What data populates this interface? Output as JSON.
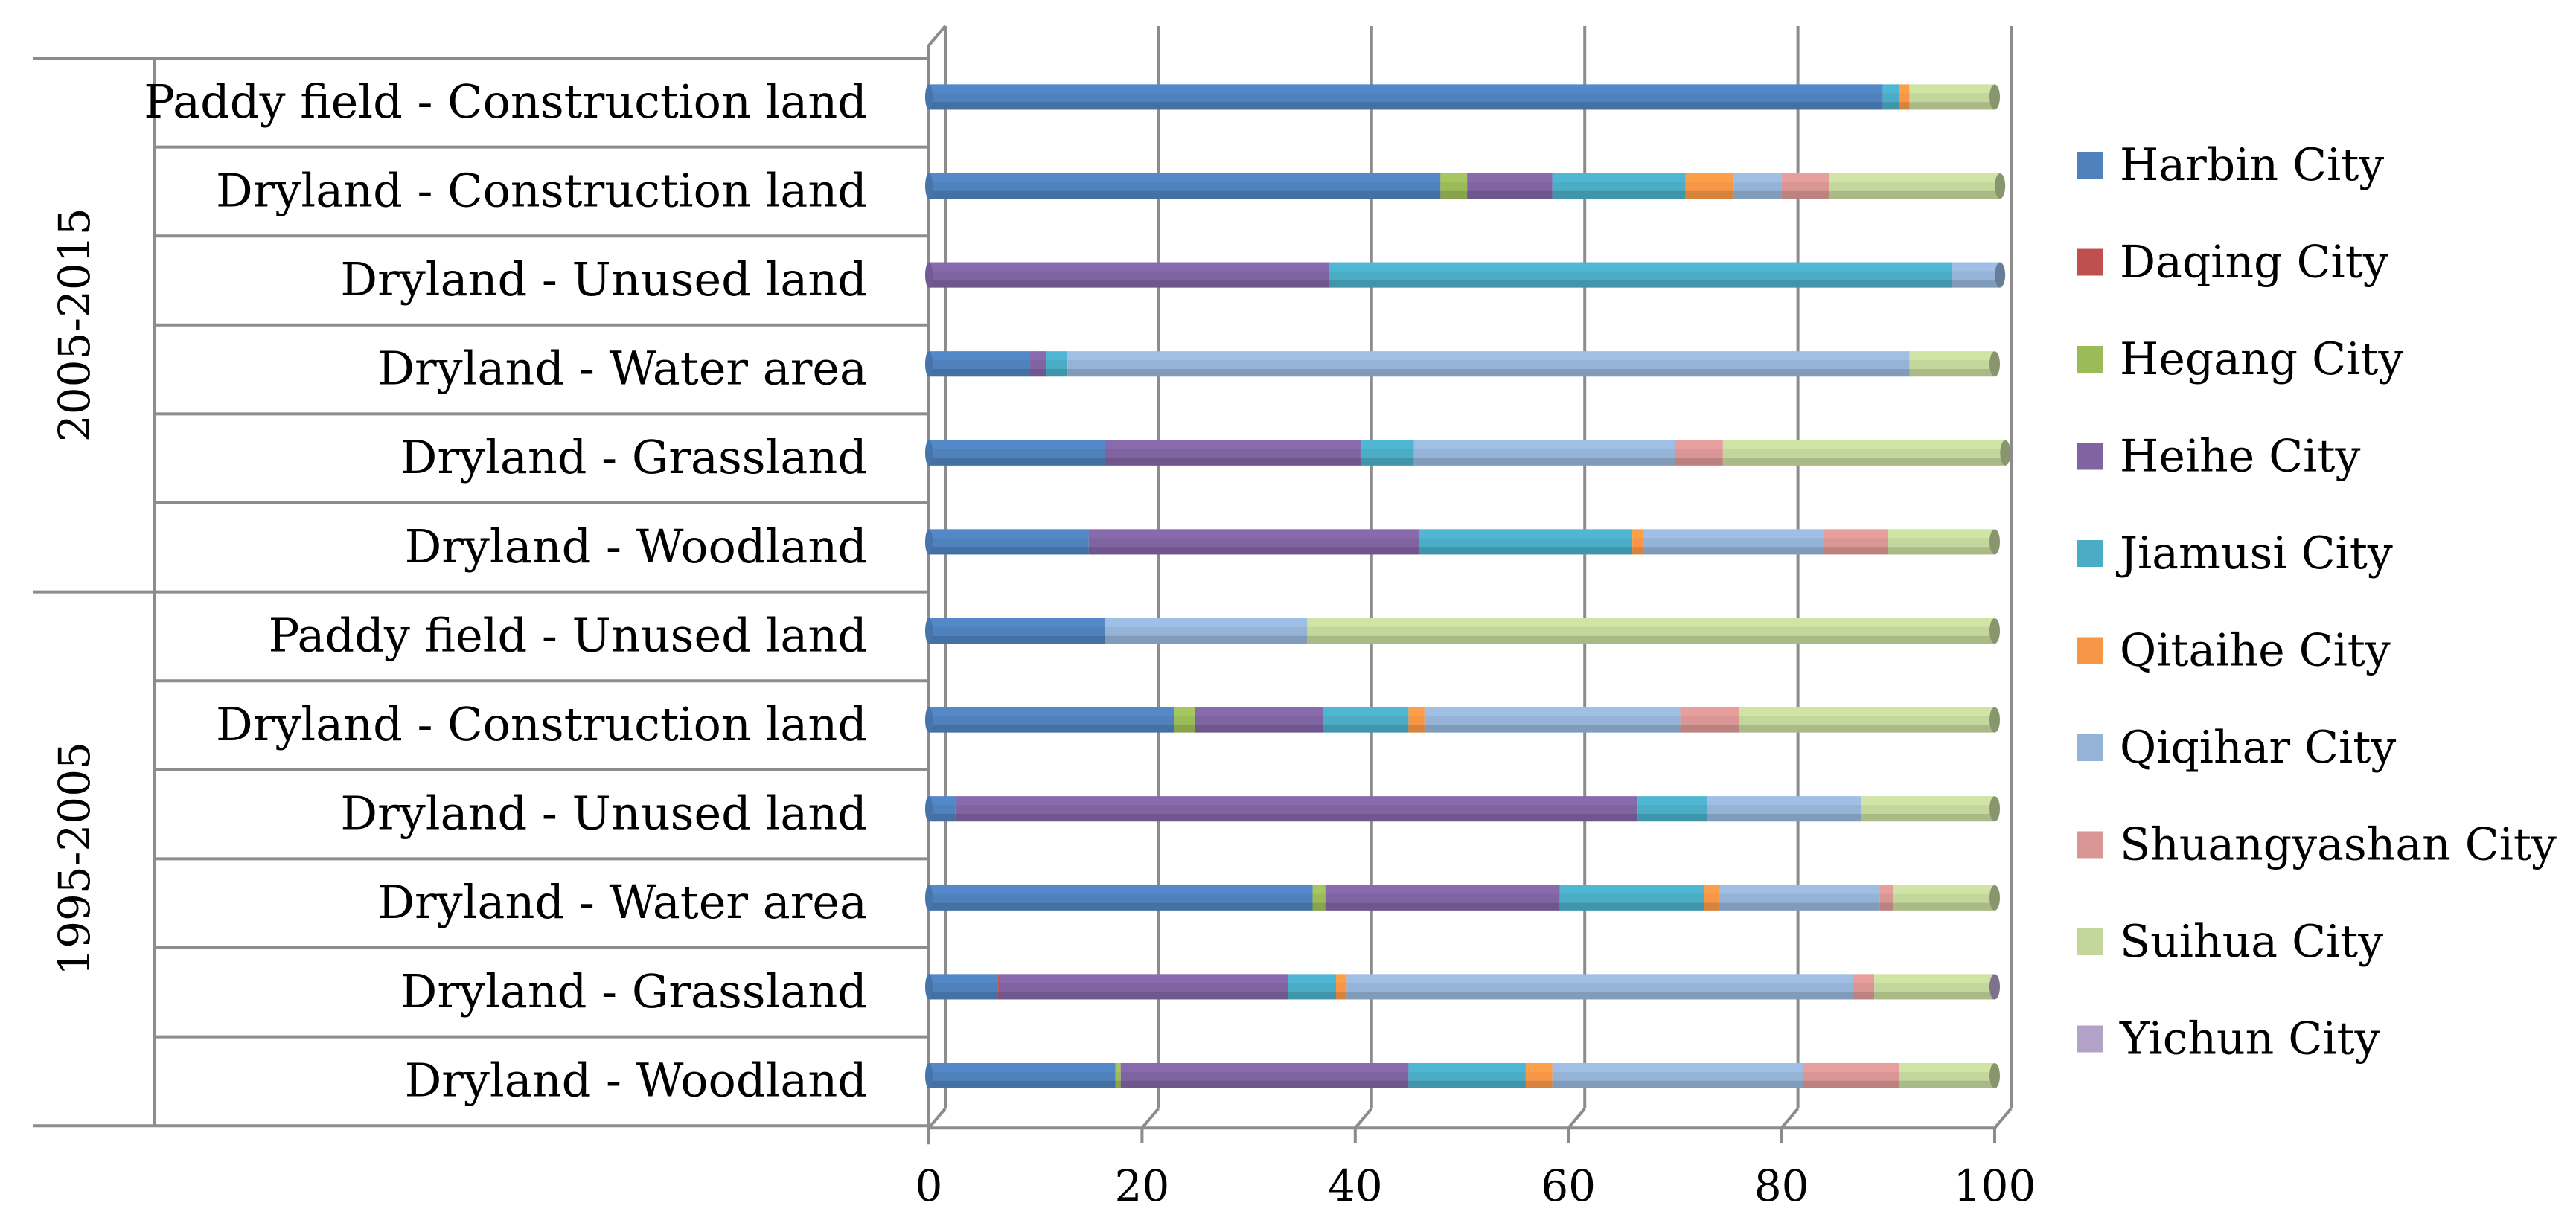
{
  "chart_data": {
    "type": "bar",
    "orientation": "horizontal",
    "stacked": true,
    "percent": true,
    "xlim": [
      0,
      100
    ],
    "x_ticks": [
      0,
      20,
      40,
      60,
      80,
      100
    ],
    "title": "",
    "xlabel": "",
    "ylabel": "",
    "legend_position": "right",
    "groups": [
      {
        "label": "2005-2015",
        "categories": [
          "Paddy field - Construction land",
          "Dryland - Construction land",
          "Dryland - Unused land",
          "Dryland - Water area",
          "Dryland - Grassland",
          "Dryland - Woodland"
        ]
      },
      {
        "label": "1995-2005",
        "categories": [
          "Paddy field - Unused land",
          "Dryland - Construction land",
          "Dryland - Unused land",
          "Dryland - Water area",
          "Dryland - Grassland",
          "Dryland - Woodland"
        ]
      }
    ],
    "categories": [
      "Paddy field - Construction land",
      "Dryland - Construction land",
      "Dryland - Unused land",
      "Dryland - Water area",
      "Dryland - Grassland",
      "Dryland - Woodland",
      "Paddy field - Unused land",
      "Dryland - Construction land",
      "Dryland - Unused land",
      "Dryland - Water area",
      "Dryland - Grassland",
      "Dryland - Woodland"
    ],
    "series": [
      {
        "name": "Harbin City",
        "color": "#4F81BD",
        "values": [
          89.5,
          48,
          0,
          9.5,
          16.5,
          15,
          16.5,
          23,
          2.5,
          36,
          6.5,
          17.5
        ]
      },
      {
        "name": "Daqing City",
        "color": "#C0504D",
        "values": [
          0,
          0,
          0,
          0,
          0,
          0,
          0,
          0,
          0,
          0,
          0.2,
          0
        ]
      },
      {
        "name": "Hegang City",
        "color": "#9BBB59",
        "values": [
          0,
          2.5,
          0,
          0,
          0,
          0,
          0,
          2,
          0,
          1.2,
          0,
          0.5
        ]
      },
      {
        "name": "Heihe City",
        "color": "#8064A2",
        "values": [
          0,
          8,
          37.5,
          1.5,
          24,
          31,
          0,
          12,
          64,
          22,
          27,
          27
        ]
      },
      {
        "name": "Jiamusi City",
        "color": "#4BACC6",
        "values": [
          1.5,
          12.5,
          58.5,
          2,
          5,
          20,
          0,
          8,
          6.5,
          13.5,
          4.5,
          11
        ]
      },
      {
        "name": "Qitaihe City",
        "color": "#F79646",
        "values": [
          1,
          4.5,
          0,
          0,
          0,
          1,
          0,
          1.5,
          0,
          1.5,
          1,
          2.5
        ]
      },
      {
        "name": "Qiqihar City",
        "color": "#95B3D7",
        "values": [
          0,
          4.5,
          4.5,
          79,
          24.5,
          17,
          19,
          24,
          14.5,
          15,
          47.5,
          23.5
        ]
      },
      {
        "name": "Shuangyashan City",
        "color": "#D99694",
        "values": [
          0,
          4.5,
          0,
          0,
          4.5,
          6,
          0,
          5.5,
          0,
          1.3,
          2,
          9
        ]
      },
      {
        "name": "Suihua City",
        "color": "#C3D69B",
        "values": [
          8,
          16,
          0,
          8,
          26.5,
          10,
          64.5,
          24,
          12.5,
          9.5,
          11,
          9
        ]
      },
      {
        "name": "Yichun City",
        "color": "#B3A2C7",
        "values": [
          0,
          0,
          0,
          0,
          0,
          0,
          0,
          0,
          0,
          0,
          0.3,
          0
        ]
      }
    ]
  }
}
